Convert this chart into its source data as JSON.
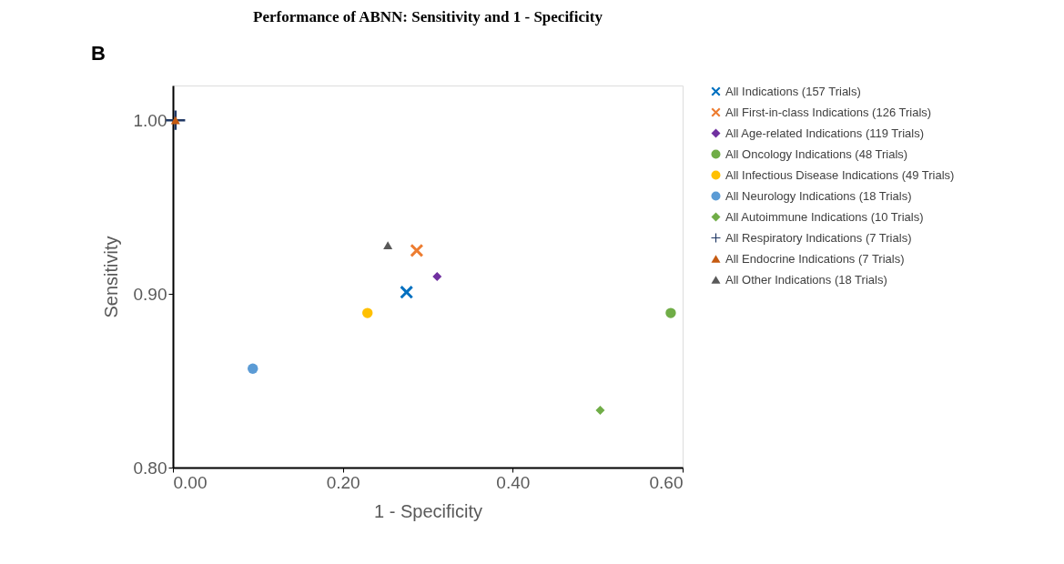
{
  "chart_data": {
    "type": "scatter",
    "title": "Performance of ABNN: Sensitivity and 1 - Specificity",
    "xlabel": "1 - Specificity",
    "ylabel": "Sensitivity",
    "annotations": [
      "B"
    ],
    "xlim": [
      0,
      0.6
    ],
    "ylim": [
      0.8,
      1.02
    ],
    "xticks": [
      {
        "value": 0,
        "label": "0.00"
      },
      {
        "value": 0.2,
        "label": "0.20"
      },
      {
        "value": 0.4,
        "label": "0.40"
      },
      {
        "value": 0.6,
        "label": "0.60"
      }
    ],
    "yticks": [
      {
        "value": 0.8,
        "label": "0.80"
      },
      {
        "value": 0.9,
        "label": "0.90"
      },
      {
        "value": 1.0,
        "label": "1.00"
      }
    ],
    "grid": false,
    "legend": "right",
    "series": [
      {
        "name": "All Indications (157 Trials)",
        "color": "#0070c0",
        "marker": "x",
        "x": [
          0.275
        ],
        "values": [
          0.901
        ]
      },
      {
        "name": "All First-in-class Indications (126 Trials)",
        "color": "#ed7d31",
        "marker": "x",
        "x": [
          0.287
        ],
        "values": [
          0.925
        ]
      },
      {
        "name": "All Age-related Indications (119 Trials)",
        "color": "#7030a0",
        "marker": "diamond",
        "x": [
          0.311
        ],
        "values": [
          0.91
        ]
      },
      {
        "name": "All Oncology Indications (48 Trials)",
        "color": "#70ad47",
        "marker": "circle",
        "x": [
          0.586
        ],
        "values": [
          0.889
        ]
      },
      {
        "name": "All Infectious Disease Indications (49 Trials)",
        "color": "#ffc000",
        "marker": "circle",
        "x": [
          0.229
        ],
        "values": [
          0.889
        ]
      },
      {
        "name": "All Neurology Indications (18 Trials)",
        "color": "#5b9bd5",
        "marker": "circle",
        "x": [
          0.094
        ],
        "values": [
          0.857
        ]
      },
      {
        "name": "All Autoimmune Indications (10 Trials)",
        "color": "#70ad47",
        "marker": "diamond",
        "x": [
          0.503
        ],
        "values": [
          0.833
        ]
      },
      {
        "name": "All Respiratory Indications (7 Trials)",
        "color": "#203864",
        "marker": "plus",
        "x": [
          0.003
        ],
        "values": [
          1.0
        ]
      },
      {
        "name": "All Endocrine Indications (7 Trials)",
        "color": "#c55a11",
        "marker": "triangle",
        "x": [
          0.003
        ],
        "values": [
          1.0
        ]
      },
      {
        "name": "All Other Indications (18 Trials)",
        "color": "#595959",
        "marker": "triangle",
        "x": [
          0.253
        ],
        "values": [
          0.928
        ]
      }
    ]
  }
}
